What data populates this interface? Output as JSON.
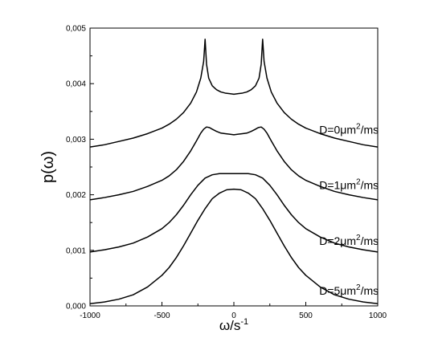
{
  "chart_data": {
    "type": "line",
    "xlabel": {
      "base": "ω/s",
      "sup": "-1"
    },
    "ylabel": "p(ω)",
    "xlim": [
      -1000,
      1000
    ],
    "ylim": [
      0.0,
      0.005
    ],
    "x_ticks": [
      {
        "value": -1000,
        "label": "-1000"
      },
      {
        "value": -500,
        "label": "-500"
      },
      {
        "value": 0,
        "label": "0"
      },
      {
        "value": 500,
        "label": "500"
      },
      {
        "value": 1000,
        "label": "1000"
      }
    ],
    "y_ticks": [
      {
        "value": 0.0,
        "label": "0,000"
      },
      {
        "value": 0.001,
        "label": "0,001"
      },
      {
        "value": 0.002,
        "label": "0,002"
      },
      {
        "value": 0.003,
        "label": "0,003"
      },
      {
        "value": 0.004,
        "label": "0,004"
      },
      {
        "value": 0.005,
        "label": "0,005"
      }
    ],
    "grid": false,
    "line_color": "#000000",
    "series": [
      {
        "label_parts": {
          "pre": "D=0μm",
          "sup": "2",
          "post": "/ms"
        },
        "label_at": {
          "x": 800,
          "y": 0.0031
        },
        "points": [
          [
            -1000,
            0.00286
          ],
          [
            -900,
            0.0029
          ],
          [
            -800,
            0.00296
          ],
          [
            -700,
            0.00302
          ],
          [
            -600,
            0.0031
          ],
          [
            -500,
            0.0032
          ],
          [
            -450,
            0.00327
          ],
          [
            -400,
            0.00336
          ],
          [
            -350,
            0.00348
          ],
          [
            -300,
            0.00365
          ],
          [
            -260,
            0.00385
          ],
          [
            -230,
            0.0041
          ],
          [
            -210,
            0.0044
          ],
          [
            -200,
            0.0048
          ],
          [
            -190,
            0.00435
          ],
          [
            -175,
            0.0041
          ],
          [
            -150,
            0.00396
          ],
          [
            -120,
            0.00389
          ],
          [
            -90,
            0.00385
          ],
          [
            -60,
            0.00383
          ],
          [
            -30,
            0.00382
          ],
          [
            0,
            0.00381
          ],
          [
            30,
            0.00382
          ],
          [
            60,
            0.00383
          ],
          [
            90,
            0.00385
          ],
          [
            120,
            0.00389
          ],
          [
            150,
            0.00396
          ],
          [
            175,
            0.0041
          ],
          [
            190,
            0.00435
          ],
          [
            200,
            0.0048
          ],
          [
            210,
            0.0044
          ],
          [
            230,
            0.0041
          ],
          [
            260,
            0.00385
          ],
          [
            300,
            0.00365
          ],
          [
            350,
            0.00348
          ],
          [
            400,
            0.00336
          ],
          [
            450,
            0.00327
          ],
          [
            500,
            0.0032
          ],
          [
            600,
            0.0031
          ],
          [
            700,
            0.00302
          ],
          [
            800,
            0.00296
          ],
          [
            900,
            0.0029
          ],
          [
            1000,
            0.00286
          ]
        ]
      },
      {
        "label_parts": {
          "pre": "D=1μm",
          "sup": "2",
          "post": "/ms"
        },
        "label_at": {
          "x": 800,
          "y": 0.0021
        },
        "points": [
          [
            -1000,
            0.00191
          ],
          [
            -900,
            0.00195
          ],
          [
            -800,
            0.002
          ],
          [
            -700,
            0.00206
          ],
          [
            -600,
            0.00215
          ],
          [
            -500,
            0.00226
          ],
          [
            -450,
            0.00234
          ],
          [
            -400,
            0.00245
          ],
          [
            -350,
            0.0026
          ],
          [
            -300,
            0.00279
          ],
          [
            -260,
            0.00297
          ],
          [
            -230,
            0.00311
          ],
          [
            -210,
            0.00318
          ],
          [
            -190,
            0.00322
          ],
          [
            -170,
            0.00321
          ],
          [
            -150,
            0.00318
          ],
          [
            -120,
            0.00314
          ],
          [
            -90,
            0.00311
          ],
          [
            -60,
            0.0031
          ],
          [
            -30,
            0.00309
          ],
          [
            0,
            0.00308
          ],
          [
            30,
            0.00309
          ],
          [
            60,
            0.0031
          ],
          [
            90,
            0.00311
          ],
          [
            120,
            0.00314
          ],
          [
            150,
            0.00318
          ],
          [
            170,
            0.00321
          ],
          [
            190,
            0.00322
          ],
          [
            210,
            0.00318
          ],
          [
            230,
            0.00311
          ],
          [
            260,
            0.00297
          ],
          [
            300,
            0.00279
          ],
          [
            350,
            0.0026
          ],
          [
            400,
            0.00245
          ],
          [
            450,
            0.00234
          ],
          [
            500,
            0.00226
          ],
          [
            600,
            0.00215
          ],
          [
            700,
            0.00206
          ],
          [
            800,
            0.002
          ],
          [
            900,
            0.00195
          ],
          [
            1000,
            0.00191
          ]
        ]
      },
      {
        "label_parts": {
          "pre": "D=2μm",
          "sup": "2",
          "post": "/ms"
        },
        "label_at": {
          "x": 800,
          "y": 0.0011
        },
        "points": [
          [
            -1000,
            0.00097
          ],
          [
            -900,
            0.00101
          ],
          [
            -800,
            0.00106
          ],
          [
            -700,
            0.00113
          ],
          [
            -600,
            0.00124
          ],
          [
            -500,
            0.00139
          ],
          [
            -450,
            0.0015
          ],
          [
            -400,
            0.00164
          ],
          [
            -350,
            0.00181
          ],
          [
            -300,
            0.002
          ],
          [
            -250,
            0.00217
          ],
          [
            -200,
            0.0023
          ],
          [
            -150,
            0.00236
          ],
          [
            -100,
            0.00238
          ],
          [
            -50,
            0.00238
          ],
          [
            0,
            0.00238
          ],
          [
            50,
            0.00238
          ],
          [
            100,
            0.00238
          ],
          [
            150,
            0.00236
          ],
          [
            200,
            0.0023
          ],
          [
            250,
            0.00217
          ],
          [
            300,
            0.002
          ],
          [
            350,
            0.00181
          ],
          [
            400,
            0.00164
          ],
          [
            450,
            0.0015
          ],
          [
            500,
            0.00139
          ],
          [
            600,
            0.00124
          ],
          [
            700,
            0.00113
          ],
          [
            800,
            0.00106
          ],
          [
            900,
            0.00101
          ],
          [
            1000,
            0.00097
          ]
        ]
      },
      {
        "label_parts": {
          "pre": "D=5μm",
          "sup": "2",
          "post": "/ms"
        },
        "label_at": {
          "x": 800,
          "y": 0.0002
        },
        "points": [
          [
            -1000,
            4e-05
          ],
          [
            -900,
            7e-05
          ],
          [
            -800,
            0.00012
          ],
          [
            -700,
            0.0002
          ],
          [
            -600,
            0.00034
          ],
          [
            -500,
            0.00055
          ],
          [
            -450,
            0.00069
          ],
          [
            -400,
            0.00087
          ],
          [
            -350,
            0.00108
          ],
          [
            -300,
            0.00131
          ],
          [
            -250,
            0.00154
          ],
          [
            -200,
            0.00175
          ],
          [
            -150,
            0.00193
          ],
          [
            -100,
            0.00203
          ],
          [
            -50,
            0.00209
          ],
          [
            0,
            0.0021
          ],
          [
            50,
            0.00209
          ],
          [
            100,
            0.00203
          ],
          [
            150,
            0.00193
          ],
          [
            200,
            0.00175
          ],
          [
            250,
            0.00154
          ],
          [
            300,
            0.00131
          ],
          [
            350,
            0.00108
          ],
          [
            400,
            0.00087
          ],
          [
            450,
            0.00069
          ],
          [
            500,
            0.00055
          ],
          [
            600,
            0.00034
          ],
          [
            700,
            0.0002
          ],
          [
            800,
            0.00012
          ],
          [
            900,
            7e-05
          ],
          [
            1000,
            4e-05
          ]
        ]
      }
    ]
  }
}
